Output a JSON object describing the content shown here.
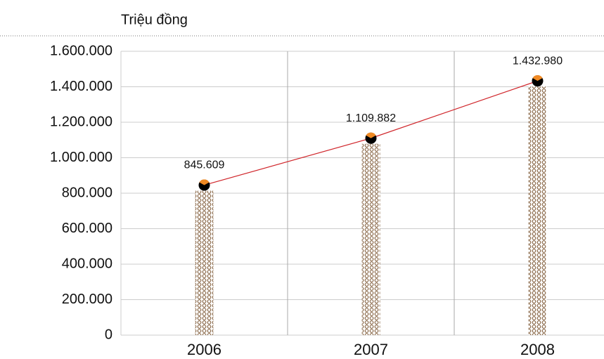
{
  "chart_data": {
    "type": "bar-line",
    "y_axis_label": "Triệu đồng",
    "categories": [
      "2006",
      "2007",
      "2008"
    ],
    "values": [
      845609,
      1109882,
      1432980
    ],
    "value_labels": [
      "845.609",
      "1.109.882",
      "1.432.980"
    ],
    "color": "#8b6a4a",
    "line_color": "#d0262b",
    "ylim": [
      0,
      1600000
    ],
    "yticks": [
      0,
      {
        "value": 200000,
        "label": "200.000"
      },
      {
        "value": 400000,
        "label": "400.000"
      },
      {
        "value": 600000,
        "label": "600.000"
      },
      {
        "value": 800000,
        "label": "800.000"
      },
      {
        "value": 1000000,
        "label": "1.000.000"
      },
      {
        "value": 1200000,
        "label": "1.200.000"
      },
      {
        "value": 1400000,
        "label": "1.400.000"
      },
      {
        "value": 1600000,
        "label": "1.600.000"
      }
    ],
    "grid": true
  }
}
